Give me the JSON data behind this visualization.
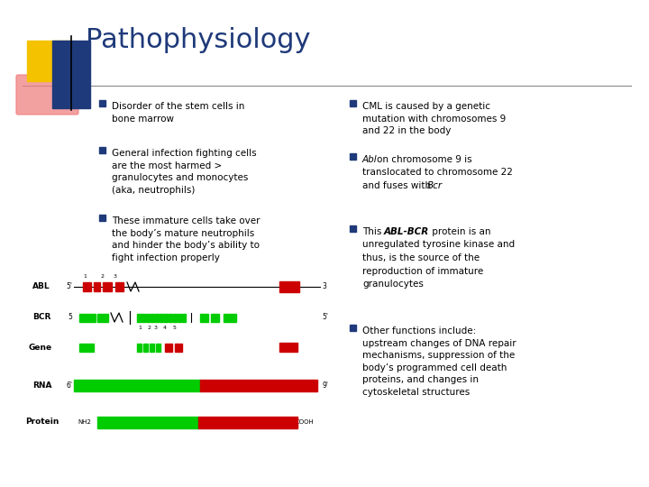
{
  "title": "Pathophysiology",
  "title_color": "#1F3A7A",
  "title_fontsize": 22,
  "bg_color": "#FFFFFF",
  "left_bullets": [
    "Disorder of the stem cells in\nbone marrow",
    "General infection fighting cells\nare the most harmed >\ngranulocytes and monocytes\n(aka, neutrophils)",
    "These immature cells take over\nthe body’s mature neutrophils\nand hinder the body’s ability to\nfight infection properly"
  ],
  "right_bullets": [
    "CML is caused by a genetic\nmutation with chromosomes 9\nand 22 in the body",
    "Abl on chromosome 9 is\ntranslocated to chromosome 22\nand fuses with Bcr",
    "This ABL-BCR protein is an\nunregulated tyrosine kinase and\nthus, is the source of the\nreproduction of immature\ngranulocytes",
    "Other functions include:\nupstream changes of DNA repair\nmechanisms, suppression of the\nbody’s programmed cell death\nproteins, and changes in\ncytoskeletal structures"
  ],
  "bullet_color": "#1F3A7A",
  "text_color": "#000000",
  "text_fontsize": 7.5,
  "accent_gold": "#F5C200",
  "accent_pink": "#F08080",
  "accent_blue": "#1F3A7A",
  "diagram_green": "#00CC00",
  "diagram_red": "#CC0000",
  "diagram_labels": [
    "ABL",
    "BCR",
    "Gene",
    "RNA",
    "Protein"
  ]
}
